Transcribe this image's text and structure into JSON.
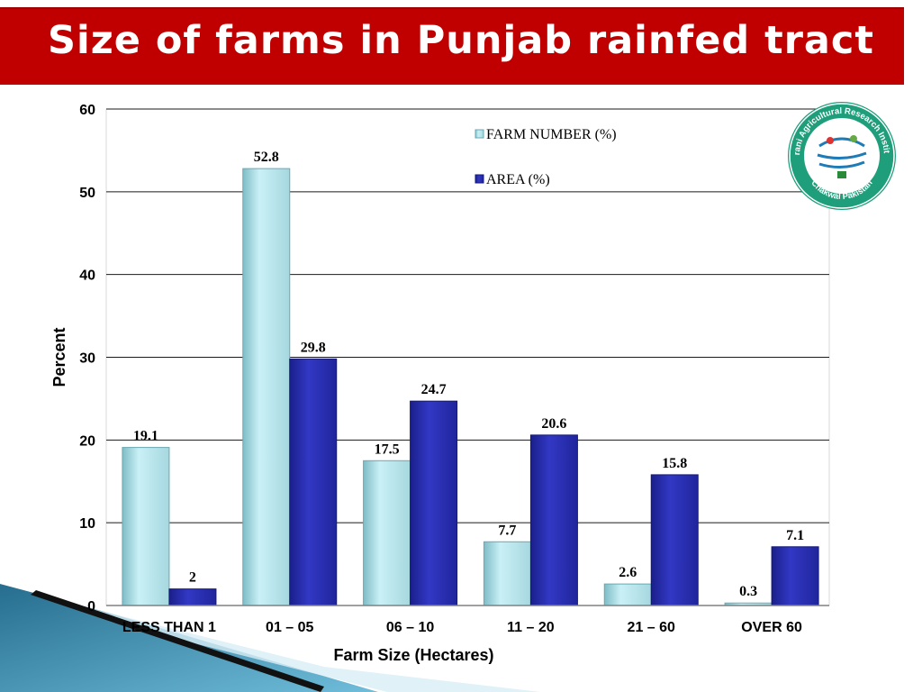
{
  "slide": {
    "title": "Size of farms in Punjab rainfed tract"
  },
  "logo": {
    "text_top": "Barani Agricultural Research Institute",
    "text_bottom": "Chakwal Pakistan",
    "colors": {
      "ring": "#1e9e7a",
      "center": "#ffffff"
    }
  },
  "chart_data": {
    "type": "bar",
    "title": "",
    "xlabel": "Farm Size (Hectares)",
    "ylabel": "Percent",
    "ylim": [
      0,
      60
    ],
    "yticks": [
      0,
      10,
      20,
      30,
      40,
      50,
      60
    ],
    "grid": true,
    "legend_position": "top-right",
    "categories": [
      "LESS THAN 1",
      "01 – 05",
      "06 – 10",
      "11 – 20",
      "21 – 60",
      "OVER 60"
    ],
    "series": [
      {
        "name": "FARM NUMBER (%)",
        "values": [
          19.1,
          52.8,
          17.5,
          7.7,
          2.6,
          0.3
        ],
        "color": "#b8e6ee",
        "labels": [
          "19.1",
          "52.8",
          "17.5",
          "7.7",
          "2.6",
          "0.3"
        ]
      },
      {
        "name": "AREA (%)",
        "values": [
          2,
          29.8,
          24.7,
          20.6,
          15.8,
          7.1
        ],
        "color": "#2a2fb0",
        "labels": [
          "2",
          "29.8",
          "24.7",
          "20.6",
          "15.8",
          "7.1"
        ]
      }
    ]
  }
}
